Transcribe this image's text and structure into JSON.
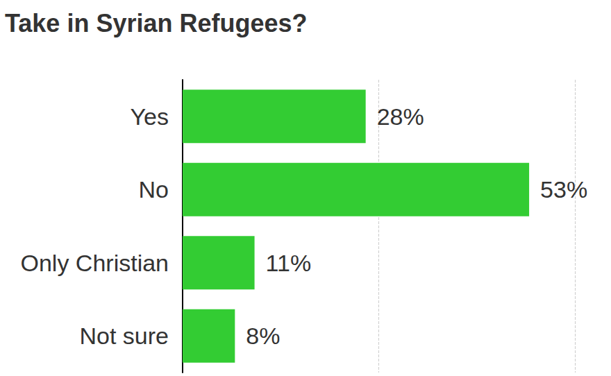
{
  "chart_data": {
    "type": "bar",
    "title": "Take in Syrian Refugees?",
    "orientation": "horizontal",
    "categories": [
      "Yes",
      "No",
      "Only Christian",
      "Not sure"
    ],
    "values": [
      28,
      53,
      11,
      8
    ],
    "value_labels": [
      "28%",
      "53%",
      "11%",
      "8%"
    ],
    "color": "#33cc33",
    "xlim": [
      0,
      60
    ],
    "xticks": [
      0,
      30,
      60
    ],
    "grid": true,
    "data_labels": true,
    "tick_labels": "y"
  }
}
